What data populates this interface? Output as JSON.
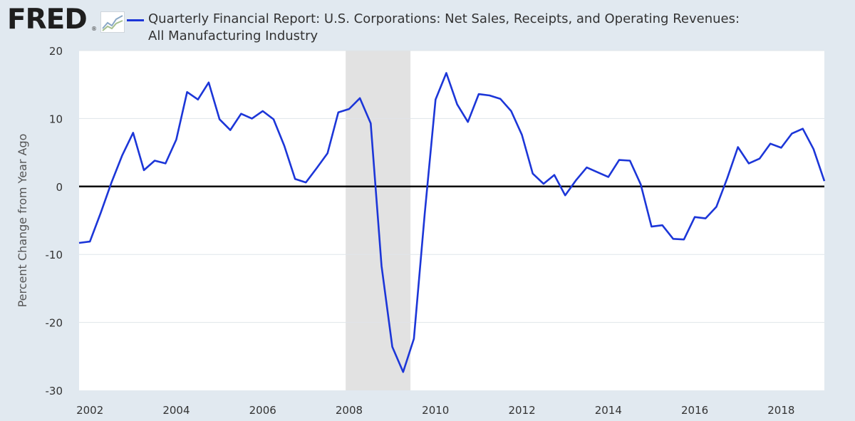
{
  "header": {
    "logo_text": "FRED",
    "logo_reg": "®",
    "legend_line1": "Quarterly Financial Report: U.S. Corporations: Net Sales, Receipts, and Operating Revenues:",
    "legend_line2": "All Manufacturing Industry"
  },
  "colors": {
    "series": "#1c36d8",
    "recession": "#e2e2e2",
    "zero_line": "#000000",
    "plot_bg": "#ffffff",
    "frame_bg": "#e1e9f0",
    "grid": "#dfe5ea"
  },
  "chart_data": {
    "type": "line",
    "title": "Quarterly Financial Report: U.S. Corporations: Net Sales, Receipts, and Operating Revenues: All Manufacturing Industry",
    "xlabel": "",
    "ylabel": "Percent Change from Year Ago",
    "xlim": [
      2001.75,
      2019.0
    ],
    "ylim": [
      -30,
      20
    ],
    "yticks": [
      20,
      10,
      0,
      -10,
      -20,
      -30
    ],
    "ytick_labels": [
      "20",
      "10",
      "0",
      "-10",
      "-20",
      "-30"
    ],
    "xticks": [
      2002,
      2004,
      2006,
      2008,
      2010,
      2012,
      2014,
      2016,
      2018
    ],
    "xtick_labels": [
      "2002",
      "2004",
      "2006",
      "2008",
      "2010",
      "2012",
      "2014",
      "2016",
      "2018"
    ],
    "zero_line": 0,
    "recession": [
      2007.92,
      2009.42
    ],
    "series": [
      {
        "name": "Quarterly Financial Report: U.S. Corporations: Net Sales, Receipts, and Operating Revenues: All Manufacturing Industry",
        "x": [
          2001.75,
          2002.0,
          2002.25,
          2002.5,
          2002.75,
          2003.0,
          2003.25,
          2003.5,
          2003.75,
          2004.0,
          2004.25,
          2004.5,
          2004.75,
          2005.0,
          2005.25,
          2005.5,
          2005.75,
          2006.0,
          2006.25,
          2006.5,
          2006.75,
          2007.0,
          2007.25,
          2007.5,
          2007.75,
          2008.0,
          2008.25,
          2008.5,
          2008.75,
          2009.0,
          2009.25,
          2009.5,
          2009.75,
          2010.0,
          2010.25,
          2010.5,
          2010.75,
          2011.0,
          2011.25,
          2011.5,
          2011.75,
          2012.0,
          2012.25,
          2012.5,
          2012.75,
          2013.0,
          2013.25,
          2013.5,
          2013.75,
          2014.0,
          2014.25,
          2014.5,
          2014.75,
          2015.0,
          2015.25,
          2015.5,
          2015.75,
          2016.0,
          2016.25,
          2016.5,
          2016.75,
          2017.0,
          2017.25,
          2017.5,
          2017.75,
          2018.0,
          2018.25,
          2018.5,
          2018.75,
          2019.0
        ],
        "values": [
          -8.3,
          -8.1,
          -3.9,
          0.6,
          4.6,
          7.9,
          2.4,
          3.8,
          3.4,
          6.9,
          13.9,
          12.8,
          15.3,
          9.9,
          8.3,
          10.7,
          10.0,
          11.1,
          9.9,
          6.0,
          1.1,
          0.6,
          2.7,
          4.9,
          10.9,
          11.4,
          13.0,
          9.3,
          -11.7,
          -23.6,
          -27.3,
          -22.4,
          -4.0,
          12.8,
          16.7,
          12.1,
          9.5,
          13.6,
          13.4,
          12.9,
          11.1,
          7.6,
          1.9,
          0.4,
          1.7,
          -1.3,
          0.9,
          2.8,
          2.1,
          1.4,
          3.9,
          3.8,
          0.3,
          -5.9,
          -5.7,
          -7.7,
          -7.8,
          -4.5,
          -4.7,
          -3.0,
          1.2,
          5.8,
          3.4,
          4.1,
          6.3,
          5.7,
          7.8,
          8.5,
          5.5,
          0.8
        ]
      }
    ]
  }
}
